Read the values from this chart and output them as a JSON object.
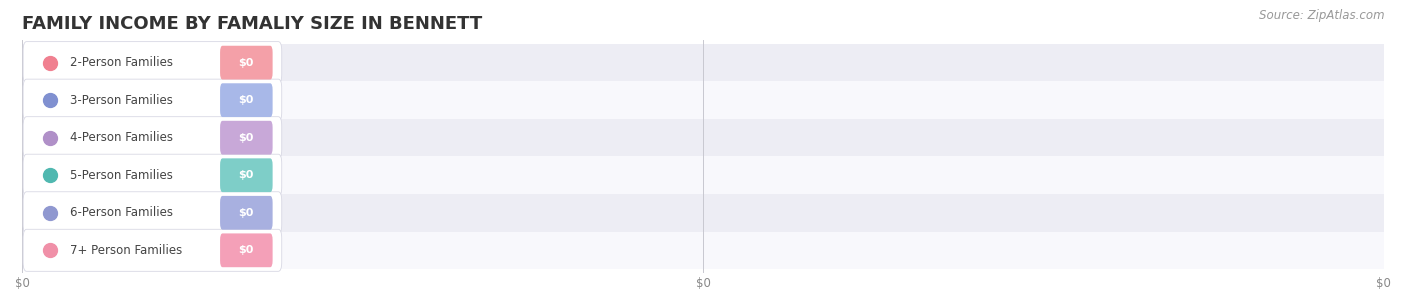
{
  "title": "FAMILY INCOME BY FAMALIY SIZE IN BENNETT",
  "source": "Source: ZipAtlas.com",
  "categories": [
    "2-Person Families",
    "3-Person Families",
    "4-Person Families",
    "5-Person Families",
    "6-Person Families",
    "7+ Person Families"
  ],
  "values": [
    0,
    0,
    0,
    0,
    0,
    0
  ],
  "bar_colors": [
    "#f4a0a8",
    "#a8b8e8",
    "#c8a8d8",
    "#7ecec8",
    "#a8b0e0",
    "#f4a0b8"
  ],
  "dot_colors": [
    "#f08090",
    "#8090d0",
    "#b090c8",
    "#50b8b0",
    "#9098d0",
    "#f090a8"
  ],
  "background_color": "#ffffff",
  "value_label": "$0",
  "x_tick_labels": [
    "$0",
    "$0",
    "$0"
  ],
  "title_fontsize": 13,
  "label_fontsize": 8.5,
  "value_fontsize": 8,
  "source_fontsize": 8.5,
  "row_colors": [
    "#ededf4",
    "#f8f8fc",
    "#ededf4",
    "#f8f8fc",
    "#ededf4",
    "#f8f8fc"
  ],
  "xlim_max": 100
}
